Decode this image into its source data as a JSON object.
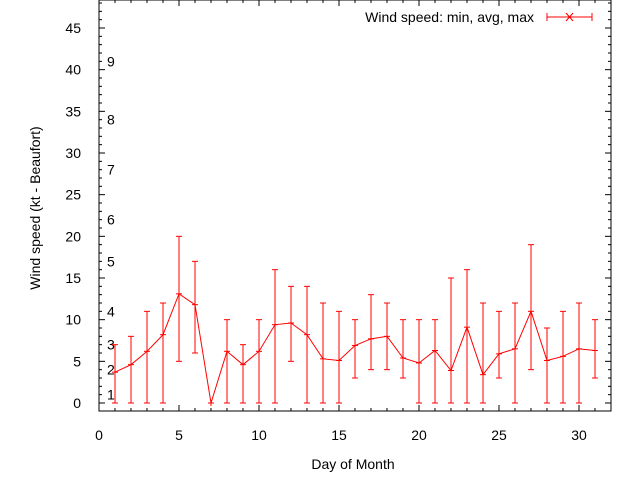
{
  "chart_data": {
    "type": "line",
    "xlabel": "Day of Month",
    "ylabel": "Wind speed (kt - Beaufort)",
    "xlim": [
      0,
      32
    ],
    "ylim": [
      0,
      48
    ],
    "x_ticks": [
      0,
      5,
      10,
      15,
      20,
      25,
      30
    ],
    "y_ticks": [
      0,
      5,
      10,
      15,
      20,
      25,
      30,
      35,
      40,
      45
    ],
    "grid": false,
    "legend_position": "top-right",
    "beaufort_labels": [
      {
        "label": "1",
        "kt": 1
      },
      {
        "label": "2",
        "kt": 4
      },
      {
        "label": "3",
        "kt": 7
      },
      {
        "label": "4",
        "kt": 11
      },
      {
        "label": "5",
        "kt": 17
      },
      {
        "label": "6",
        "kt": 22
      },
      {
        "label": "7",
        "kt": 28
      },
      {
        "label": "8",
        "kt": 34
      },
      {
        "label": "9",
        "kt": 41
      }
    ],
    "series": [
      {
        "name": "Wind speed: min, avg, max",
        "color": "#ff0000",
        "x": [
          1,
          2,
          3,
          4,
          5,
          6,
          7,
          8,
          9,
          10,
          11,
          12,
          13,
          14,
          15,
          16,
          17,
          18,
          19,
          20,
          21,
          22,
          23,
          24,
          25,
          26,
          27,
          28,
          29,
          30,
          31
        ],
        "avg": [
          3.7,
          4.6,
          6.2,
          8.2,
          13.1,
          11.8,
          0,
          6.2,
          4.6,
          6.2,
          9.4,
          9.6,
          8.2,
          5.3,
          5.1,
          6.9,
          7.7,
          8.0,
          5.4,
          4.8,
          6.3,
          3.9,
          9.1,
          3.4,
          5.9,
          6.5,
          11.0,
          5.1,
          5.6,
          6.5,
          6.3
        ],
        "min": [
          0,
          0,
          0,
          0,
          5,
          6,
          0,
          0,
          0,
          0,
          0,
          5,
          0,
          0,
          0,
          3,
          4,
          4,
          3,
          0,
          0,
          0,
          0,
          0,
          3,
          0,
          4,
          0,
          0,
          0,
          3
        ],
        "max": [
          7,
          8,
          11,
          12,
          20,
          17,
          0,
          10,
          7,
          10,
          16,
          14,
          14,
          12,
          11,
          10,
          13,
          12,
          10,
          10,
          10,
          15,
          16,
          12,
          11,
          12,
          19,
          9,
          11,
          12,
          10
        ]
      }
    ]
  }
}
